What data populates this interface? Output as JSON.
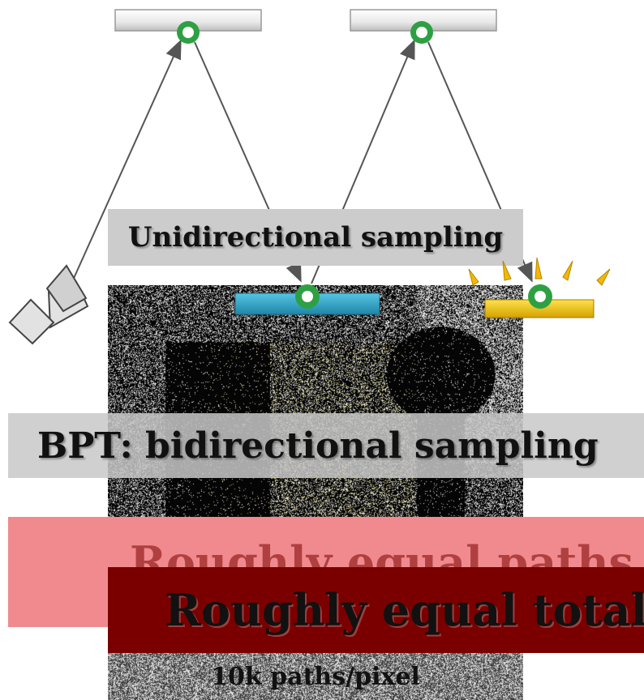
{
  "labels": {
    "unidirectional": "Unidirectional sampling",
    "bidirectional": "BPT: bidirectional sampling",
    "equal_paths": "Roughly equal paths",
    "equal_total": "Roughly equal total",
    "paths_per_pixel": "10k paths/pixel"
  },
  "colors": {
    "mirror_gray": "#e6e6e6",
    "vertex_green": "#2ea043",
    "blue_surface": "#2fa4c6",
    "light_yellow": "#f5c400",
    "overlay_red": "#7a0000",
    "overlay_pink": "#f08a8e"
  },
  "icons": [
    "camera-icon",
    "light-source-icon",
    "path-vertex-icon"
  ]
}
